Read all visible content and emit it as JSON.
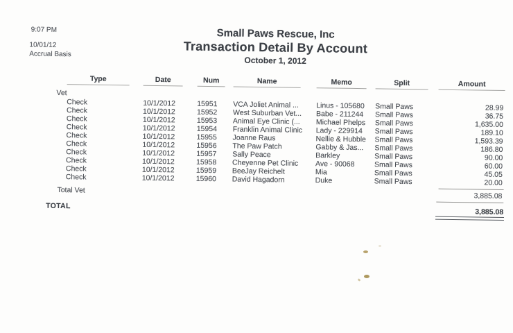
{
  "meta": {
    "time": "9:07 PM",
    "date": "10/01/12",
    "basis": "Accrual Basis"
  },
  "header": {
    "company": "Small Paws Rescue, Inc",
    "title": "Transaction Detail By Account",
    "subtitle": "October 1, 2012"
  },
  "table": {
    "columns": {
      "type": "Type",
      "date": "Date",
      "num": "Num",
      "name": "Name",
      "memo": "Memo",
      "split": "Split",
      "amount": "Amount"
    },
    "section_label": "Vet",
    "rows": [
      {
        "type": "Check",
        "date": "10/1/2012",
        "num": "15951",
        "name": "VCA Joliet Animal ...",
        "memo": "Linus - 105680",
        "split": "Small Paws",
        "amount": "28.99"
      },
      {
        "type": "Check",
        "date": "10/1/2012",
        "num": "15952",
        "name": "West Suburban Vet...",
        "memo": "Babe - 211244",
        "split": "Small Paws",
        "amount": "36.75"
      },
      {
        "type": "Check",
        "date": "10/1/2012",
        "num": "15953",
        "name": "Animal Eye Clinic (...",
        "memo": "Michael Phelps",
        "split": "Small Paws",
        "amount": "1,635.00"
      },
      {
        "type": "Check",
        "date": "10/1/2012",
        "num": "15954",
        "name": "Franklin Animal Clinic",
        "memo": "Lady - 229914",
        "split": "Small Paws",
        "amount": "189.10"
      },
      {
        "type": "Check",
        "date": "10/1/2012",
        "num": "15955",
        "name": "Joanne Raus",
        "memo": "Nellie & Hubble",
        "split": "Small Paws",
        "amount": "1,593.39"
      },
      {
        "type": "Check",
        "date": "10/1/2012",
        "num": "15956",
        "name": "The Paw Patch",
        "memo": "Gabby & Jas...",
        "split": "Small Paws",
        "amount": "186.80"
      },
      {
        "type": "Check",
        "date": "10/1/2012",
        "num": "15957",
        "name": "Sally Peace",
        "memo": "Barkley",
        "split": "Small Paws",
        "amount": "90.00"
      },
      {
        "type": "Check",
        "date": "10/1/2012",
        "num": "15958",
        "name": "Cheyenne Pet Clinic",
        "memo": "Ave - 90068",
        "split": "Small Paws",
        "amount": "60.00"
      },
      {
        "type": "Check",
        "date": "10/1/2012",
        "num": "15959",
        "name": "BeeJay Reichelt",
        "memo": "Mia",
        "split": "Small Paws",
        "amount": "45.05"
      },
      {
        "type": "Check",
        "date": "10/1/2012",
        "num": "15960",
        "name": "David Hagadorn",
        "memo": "Duke",
        "split": "Small Paws",
        "amount": "20.00"
      }
    ],
    "total_section": {
      "label": "Total Vet",
      "amount": "3,885.08"
    },
    "grand_total": {
      "label": "TOTAL",
      "amount": "3,885.08"
    }
  },
  "colors": {
    "ink": "#4a4e54",
    "ink_bold": "#3c4046",
    "rule": "#8f8f8d",
    "stain": "#a58e4e"
  }
}
